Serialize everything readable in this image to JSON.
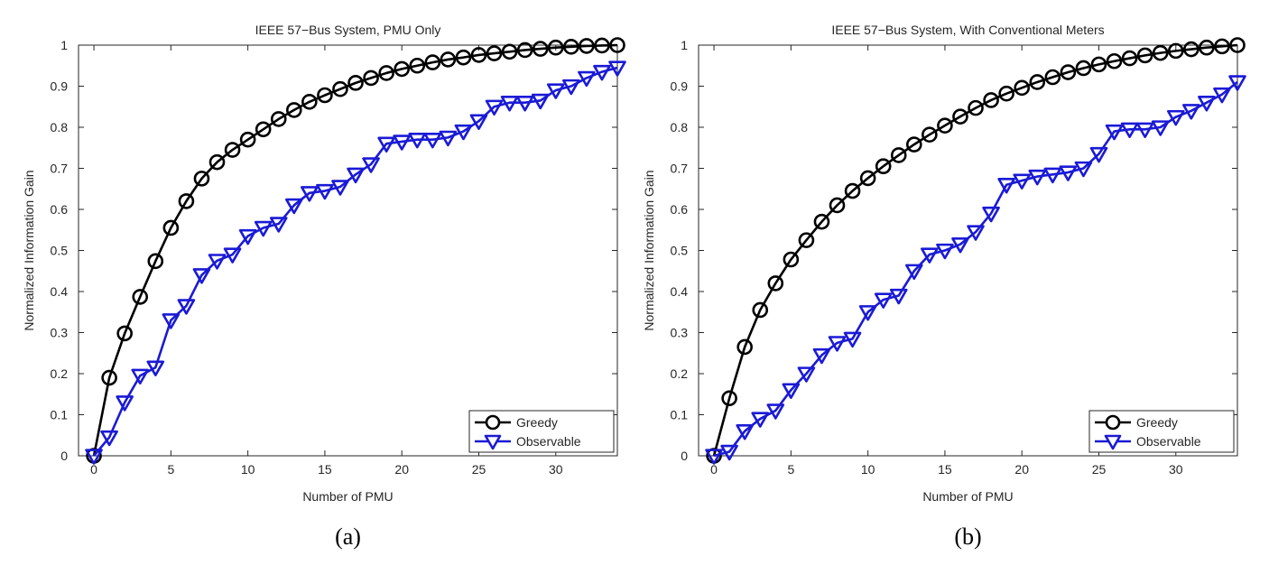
{
  "chart_data": [
    {
      "type": "line",
      "title": "IEEE 57−Bus System, PMU Only",
      "caption": "(a)",
      "xlabel": "Number of PMU",
      "ylabel": "Normalized Information Gain",
      "xlim": [
        -1,
        34
      ],
      "ylim": [
        0,
        1
      ],
      "xticks": [
        "0",
        "5",
        "10",
        "15",
        "20",
        "25",
        "30"
      ],
      "yticks": [
        "0",
        "0.1",
        "0.2",
        "0.3",
        "0.4",
        "0.5",
        "0.6",
        "0.7",
        "0.8",
        "0.9",
        "1"
      ],
      "grid": false,
      "legend_position": "bottom-right",
      "x": [
        0,
        1,
        2,
        3,
        4,
        5,
        6,
        7,
        8,
        9,
        10,
        11,
        12,
        13,
        14,
        15,
        16,
        17,
        18,
        19,
        20,
        21,
        22,
        23,
        24,
        25,
        26,
        27,
        28,
        29,
        30,
        31,
        32,
        33,
        34
      ],
      "series": [
        {
          "name": "Greedy",
          "color": "#000000",
          "marker": "circle",
          "values": [
            0,
            0.19,
            0.298,
            0.387,
            0.474,
            0.555,
            0.62,
            0.675,
            0.715,
            0.745,
            0.77,
            0.795,
            0.82,
            0.842,
            0.862,
            0.878,
            0.893,
            0.908,
            0.92,
            0.932,
            0.942,
            0.95,
            0.958,
            0.965,
            0.97,
            0.976,
            0.98,
            0.984,
            0.988,
            0.991,
            0.994,
            0.996,
            0.998,
            0.999,
            1.0
          ]
        },
        {
          "name": "Observable",
          "color": "#1a1ad6",
          "marker": "triangle-down",
          "values": [
            0,
            0.045,
            0.13,
            0.195,
            0.215,
            0.33,
            0.365,
            0.44,
            0.475,
            0.49,
            0.535,
            0.555,
            0.565,
            0.61,
            0.64,
            0.645,
            0.655,
            0.685,
            0.71,
            0.76,
            0.765,
            0.77,
            0.77,
            0.775,
            0.79,
            0.815,
            0.85,
            0.86,
            0.86,
            0.865,
            0.89,
            0.9,
            0.92,
            0.935,
            0.945
          ]
        }
      ]
    },
    {
      "type": "line",
      "title": "IEEE 57−Bus System, With Conventional Meters",
      "caption": "(b)",
      "xlabel": "Number of PMU",
      "ylabel": "Normalized Information Gain",
      "xlim": [
        -1,
        34
      ],
      "ylim": [
        0,
        1
      ],
      "xticks": [
        "0",
        "5",
        "10",
        "15",
        "20",
        "25",
        "30"
      ],
      "yticks": [
        "0",
        "0.1",
        "0.2",
        "0.3",
        "0.4",
        "0.5",
        "0.6",
        "0.7",
        "0.8",
        "0.9",
        "1"
      ],
      "grid": false,
      "legend_position": "bottom-right",
      "x": [
        0,
        1,
        2,
        3,
        4,
        5,
        6,
        7,
        8,
        9,
        10,
        11,
        12,
        13,
        14,
        15,
        16,
        17,
        18,
        19,
        20,
        21,
        22,
        23,
        24,
        25,
        26,
        27,
        28,
        29,
        30,
        31,
        32,
        33,
        34
      ],
      "series": [
        {
          "name": "Greedy",
          "color": "#000000",
          "marker": "circle",
          "values": [
            0,
            0.14,
            0.265,
            0.355,
            0.42,
            0.478,
            0.525,
            0.57,
            0.61,
            0.645,
            0.676,
            0.705,
            0.732,
            0.758,
            0.782,
            0.804,
            0.826,
            0.847,
            0.866,
            0.882,
            0.896,
            0.91,
            0.922,
            0.934,
            0.944,
            0.953,
            0.961,
            0.968,
            0.975,
            0.981,
            0.986,
            0.99,
            0.994,
            0.997,
            1.0
          ]
        },
        {
          "name": "Observable",
          "color": "#1a1ad6",
          "marker": "triangle-down",
          "values": [
            0,
            0.01,
            0.06,
            0.09,
            0.11,
            0.16,
            0.2,
            0.245,
            0.275,
            0.285,
            0.35,
            0.38,
            0.39,
            0.45,
            0.49,
            0.5,
            0.515,
            0.545,
            0.59,
            0.66,
            0.67,
            0.68,
            0.685,
            0.69,
            0.7,
            0.735,
            0.79,
            0.795,
            0.795,
            0.8,
            0.825,
            0.84,
            0.86,
            0.88,
            0.91
          ]
        }
      ]
    }
  ]
}
